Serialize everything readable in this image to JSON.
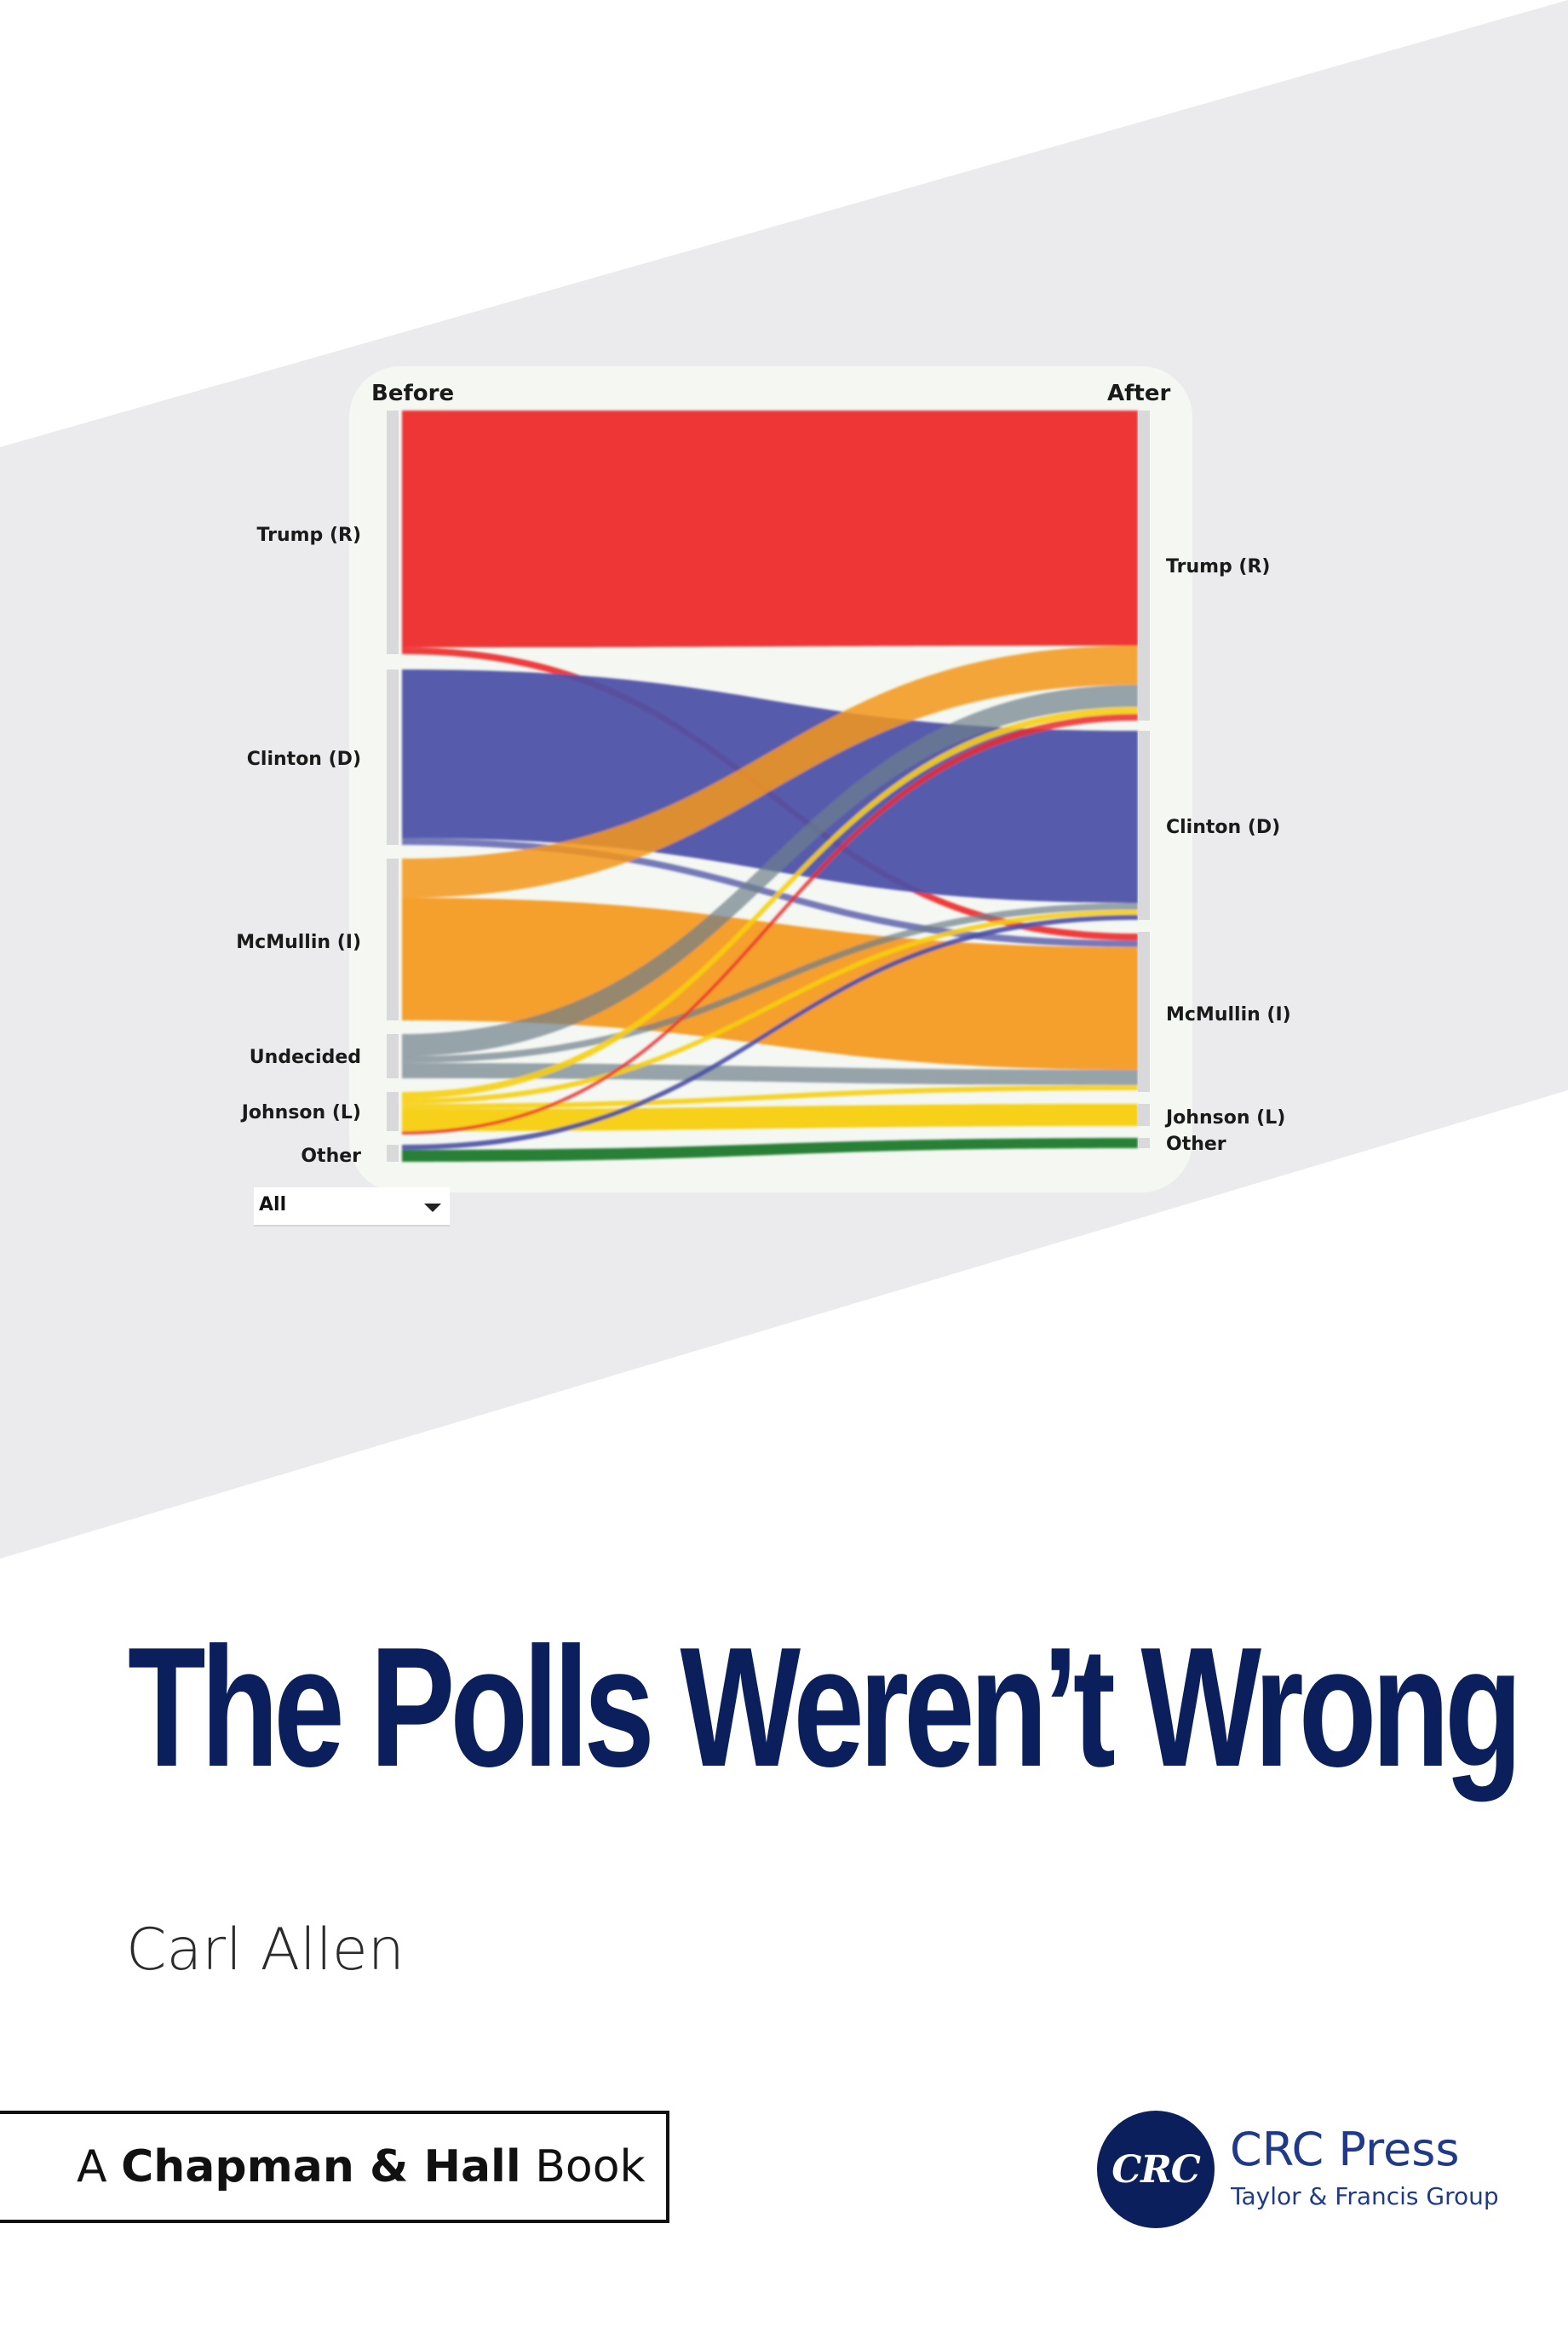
{
  "colors": {
    "title": "#0b1f5c",
    "band": "#ebebed",
    "publisher": "#1f3a8a",
    "trump": "#ee2a2a",
    "clinton": "#4b4fa6",
    "mcmullin": "#f5961a",
    "undecided": "#6d7f8a",
    "johnson": "#f7cf10",
    "other": "#1a7a2c"
  },
  "chart_data": {
    "type": "sankey",
    "header_left": "Before",
    "header_right": "After",
    "left_nodes": [
      "Trump (R)",
      "Clinton (D)",
      "McMullin (I)",
      "Undecided",
      "Johnson (L)",
      "Other"
    ],
    "right_nodes": [
      "Trump (R)",
      "Clinton (D)",
      "McMullin (I)",
      "Johnson (L)",
      "Other"
    ],
    "filter": {
      "selected": "All"
    }
  },
  "cover": {
    "title": "The Polls Weren’t Wrong",
    "author": "Carl Allen",
    "series_prefix": "A",
    "series_name": "Chapman & Hall",
    "series_suffix": "Book",
    "publisher_logo": "CRC",
    "publisher": "CRC Press",
    "publisher_group": "Taylor & Francis Group"
  }
}
